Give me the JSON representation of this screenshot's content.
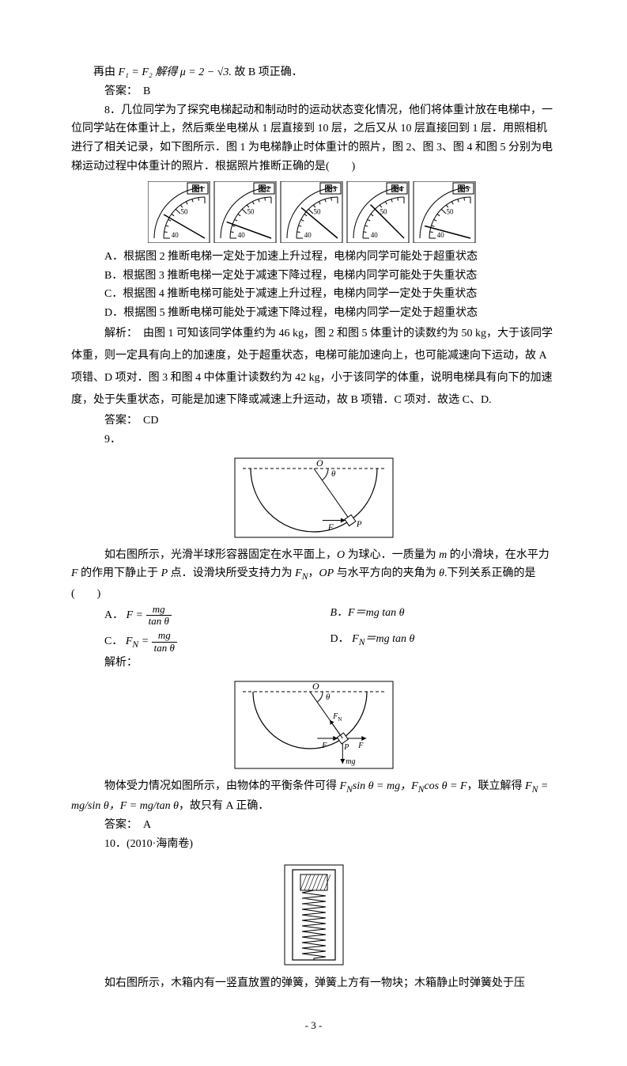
{
  "line1a": "再由 ",
  "line1_eq": "F₁ = F₂ 解得 μ = 2 − √3.",
  "line1b": "故 B 项正确．",
  "ans1_label": "答案：　B",
  "q8_intro": "8．几位同学为了探究电梯起动和制动时的运动状态变化情况，他们将体重计放在电梯中，一位同学站在体重计上，然后乘坐电梯从 1 层直接到 10 层，之后又从 10 层直接回到 1 层．用照相机进行了相关记录，如下图所示．图 1 为电梯静止时体重计的照片，图 2、图 3、图 4 和图 5 分别为电梯运动过程中体重计的照片．根据照片推断正确的是(　　)",
  "gauges": [
    {
      "label": "图1",
      "ticks": [
        "50",
        "40"
      ],
      "needle_deg": 120
    },
    {
      "label": "图2",
      "ticks": [
        "50",
        "40"
      ],
      "needle_deg": 110
    },
    {
      "label": "图3",
      "ticks": [
        "50",
        "40"
      ],
      "needle_deg": 130
    },
    {
      "label": "图4",
      "ticks": [
        "50",
        "40"
      ],
      "needle_deg": 135
    },
    {
      "label": "图5",
      "ticks": [
        "50",
        "40"
      ],
      "needle_deg": 105
    }
  ],
  "q8_opts": {
    "A": "A．根据图 2 推断电梯一定处于加速上升过程，电梯内同学可能处于超重状态",
    "B": "B．根据图 3 推断电梯一定处于减速下降过程，电梯内同学可能处于失重状态",
    "C": "C．根据图 4 推断电梯可能处于减速上升过程，电梯内同学一定处于失重状态",
    "D": "D．根据图 5 推断电梯可能处于减速下降过程，电梯内同学一定处于超重状态"
  },
  "q8_analysis": "解析：　由图 1 可知该同学体重约为 46 kg，图 2 和图 5 体重计的读数约为 50 kg，大于该同学体重，则一定具有向上的加速度，处于超重状态，电梯可能加速向上，也可能减速向下运动，故 A 项错、D 项对．图 3 和图 4 中体重计读数约为 42 kg，小于该同学的体重，说明电梯具有向下的加速度，处于失重状态，可能是加速下降或减速上升运动，故 B 项错．C 项对．故选 C、D.",
  "q8_ans": "答案：　CD",
  "q9_num": "9．",
  "q9_fig": {
    "labels": {
      "O": "O",
      "theta": "θ",
      "F": "F",
      "P": "P"
    }
  },
  "q9_text1": "如右图所示，光滑半球形容器固定在水平面上，",
  "q9_text2": " 为球心．一质量为 ",
  "q9_text3": " 的小滑块，在水平力 ",
  "q9_text4": " 的作用下静止于 ",
  "q9_text5": " 点．设滑块所受支持力为 ",
  "q9_text6": "，",
  "q9_text7": " 与水平方向的夹角为 ",
  "q9_text8": ".下列关系正确的是(　　)",
  "q9_sym": {
    "O": "O",
    "m": "m",
    "F": "F",
    "P": "P",
    "FN": "F",
    "FNsub": "N",
    "OP": "OP",
    "theta": "θ"
  },
  "q9_opts": {
    "A_pre": "A．",
    "A_eq": "F =",
    "A_frac_num": "mg",
    "A_frac_den": "tan θ",
    "B": "B．F＝mg tan θ",
    "C_pre": "C．",
    "C_eq": "F",
    "C_sub": "N",
    "C_eq2": " =",
    "C_frac_num": "mg",
    "C_frac_den": "tan θ",
    "D_pre": "D．",
    "D_eq": "F",
    "D_sub": "N",
    "D_eq2": "＝mg tan θ"
  },
  "q9_analysis_label": "解析：",
  "q9_fig2": {
    "labels": {
      "O": "O",
      "theta": "θ",
      "FN": "F",
      "FNsub": "N",
      "F": "F",
      "Ff": "F",
      "P": "P",
      "mg": "mg"
    }
  },
  "q9_analysis_text1": "物体受力情况如图所示，由物体的平衡条件可得 ",
  "q9_analysis_eq1": "F",
  "q9_analysis_sub1": "N",
  "q9_analysis_eq2": "sin θ = mg，F",
  "q9_analysis_sub2": "N",
  "q9_analysis_eq3": "cos θ = F",
  "q9_analysis_text2": "，联立解得 ",
  "q9_analysis_eq4": "F",
  "q9_analysis_sub3": "N",
  "q9_analysis_eq5": " = mg/sin θ，F = mg/tan θ",
  "q9_analysis_text3": "，故只有 A 正确．",
  "q9_ans": "答案：　A",
  "q10_num": "10．(2010·海南卷)",
  "q10_text": "如右图所示，木箱内有一竖直放置的弹簧，弹簧上方有一物块；木箱静止时弹簧处于压",
  "page": "- 3 -",
  "colors": {
    "fg": "#000000",
    "bg": "#ffffff",
    "box_border": "#000000"
  }
}
